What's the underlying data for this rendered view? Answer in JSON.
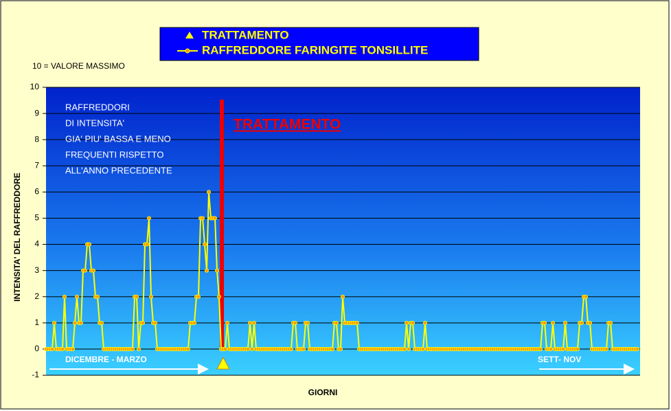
{
  "chart_data": {
    "type": "line",
    "note": "10 = VALORE MASSIMO",
    "y_label": "INTENSITA' DEL RAFFREDDORE",
    "x_label": "GIORNI",
    "annotation": [
      "RAFFREDDORI",
      "DI INTENSITA'",
      "GIA' PIU' BASSA E MENO",
      "FREQUENTI RISPETTO",
      "ALL'ANNO PRECEDENTE"
    ],
    "treatment_label": "TRATTAMENTO",
    "period_labels": [
      "DICEMBRE - MARZO",
      "SETT- NOV"
    ],
    "markers": [
      {
        "name": "TRATTAMENTO",
        "color": "#ffff00"
      }
    ],
    "series": [
      {
        "name": "RAFFREDDORE FARINGITE TONSILLITE",
        "color": "#ffff00",
        "marker_color": "#ff9900",
        "values": [
          0,
          0,
          0,
          0,
          1,
          0,
          0,
          0,
          0,
          2,
          0,
          0,
          0,
          0,
          1,
          2,
          1,
          1,
          3,
          3,
          4,
          4,
          3,
          3,
          2,
          2,
          1,
          1,
          0,
          0,
          0,
          0,
          0,
          0,
          0,
          0,
          0,
          0,
          0,
          0,
          0,
          0,
          0,
          2,
          2,
          0,
          1,
          1,
          4,
          4,
          5,
          2,
          1,
          1,
          0,
          0,
          0,
          0,
          0,
          0,
          0,
          0,
          0,
          0,
          0,
          0,
          0,
          0,
          0,
          0,
          1,
          1,
          1,
          2,
          2,
          5,
          5,
          4,
          3,
          6,
          5,
          5,
          5,
          3,
          2,
          0,
          0,
          0,
          1,
          0,
          0,
          0,
          0,
          0,
          0,
          0,
          0,
          0,
          0,
          1,
          0,
          1,
          0,
          0,
          0,
          0,
          0,
          0,
          0,
          0,
          0,
          0,
          0,
          0,
          0,
          0,
          0,
          0,
          0,
          0,
          1,
          1,
          0,
          0,
          0,
          0,
          1,
          1,
          0,
          0,
          0,
          0,
          0,
          0,
          0,
          0,
          0,
          0,
          0,
          0,
          1,
          1,
          0,
          0,
          2,
          1,
          1,
          1,
          1,
          1,
          1,
          1,
          0,
          0,
          0,
          0,
          0,
          0,
          0,
          0,
          0,
          0,
          0,
          0,
          0,
          0,
          0,
          0,
          0,
          0,
          0,
          0,
          0,
          0,
          0,
          1,
          0,
          1,
          1,
          0,
          0,
          0,
          0,
          0,
          1,
          0,
          0,
          0,
          0,
          0,
          0,
          0,
          0,
          0,
          0,
          0,
          0,
          0,
          0,
          0,
          0,
          0,
          0,
          0,
          0,
          0,
          0,
          0,
          0,
          0,
          0,
          0,
          0,
          0,
          0,
          0,
          0,
          0,
          0,
          0,
          0,
          0,
          0,
          0,
          0,
          0,
          0,
          0,
          0,
          0,
          0,
          0,
          0,
          0,
          0,
          0,
          0,
          0,
          0,
          0,
          0,
          1,
          1,
          0,
          0,
          0,
          1,
          0,
          0,
          0,
          0,
          0,
          1,
          0,
          0,
          0,
          0,
          0,
          0,
          1,
          1,
          2,
          2,
          1,
          1,
          0,
          0,
          0,
          0,
          0,
          0,
          0,
          0,
          1,
          1,
          0,
          0,
          0,
          0,
          0,
          0,
          0,
          0,
          0,
          0,
          0,
          0,
          0
        ]
      }
    ],
    "ylim": [
      -1,
      10
    ],
    "yticks": [
      -1,
      0,
      1,
      2,
      3,
      4,
      5,
      6,
      7,
      8,
      9,
      10
    ],
    "grid": true
  }
}
